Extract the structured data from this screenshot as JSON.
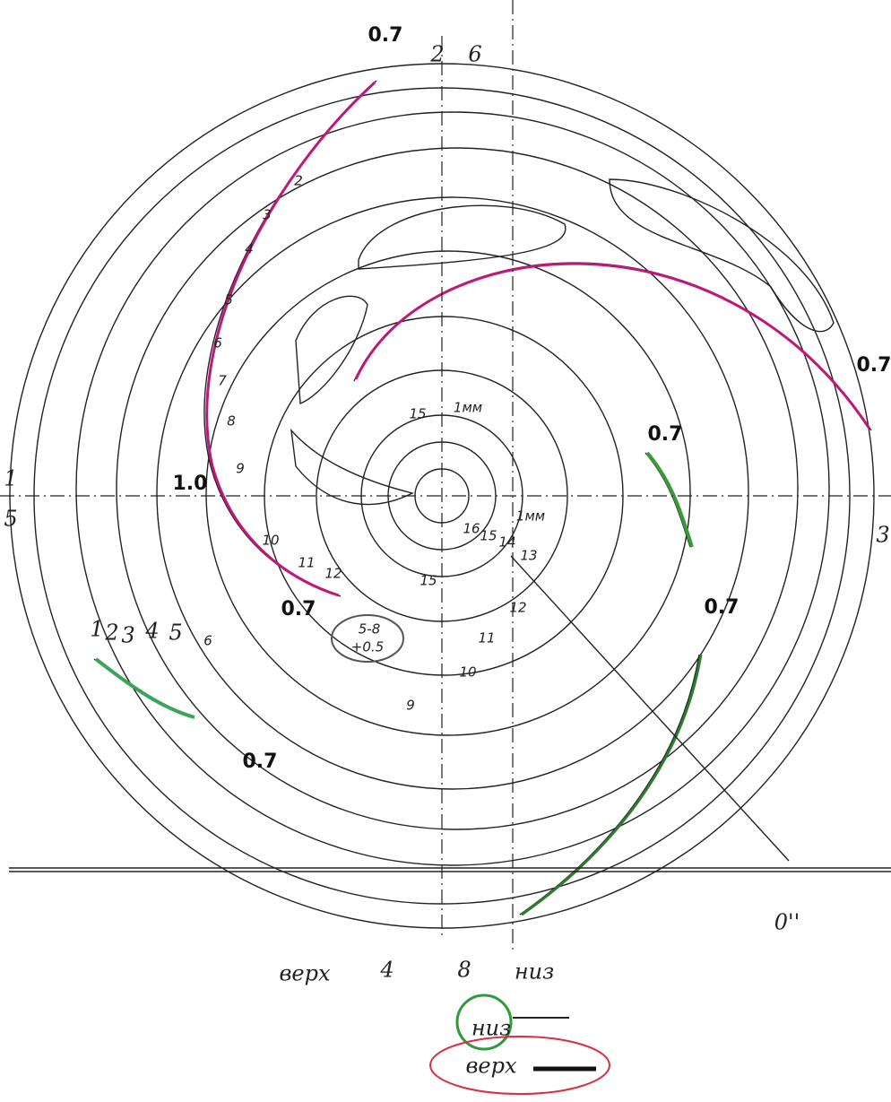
{
  "top_labels": [
    "2",
    "6"
  ],
  "thickness_labels": [
    "0.7",
    "0.7",
    "0.7",
    "0.7",
    "0.7",
    "0.7"
  ],
  "thick_label": "1.0",
  "axis_labels": [
    "1",
    "5",
    "3"
  ],
  "blade_sections": [
    "2",
    "3",
    "4",
    "5",
    "6",
    "7",
    "8",
    "9",
    "10",
    "11",
    "12"
  ],
  "lower_sections": [
    "1",
    "2",
    "3",
    "4",
    "5",
    "6"
  ],
  "center_sections": [
    "15",
    "1мм",
    "16",
    "15",
    "14",
    "13",
    "1мм",
    "12",
    "11",
    "10",
    "9",
    "15"
  ],
  "note": [
    "5-8",
    "+0.5"
  ],
  "mark": "0''",
  "bottom_labels": [
    "верх",
    "4",
    "8",
    "низ"
  ],
  "legend": [
    "низ",
    "верх"
  ]
}
